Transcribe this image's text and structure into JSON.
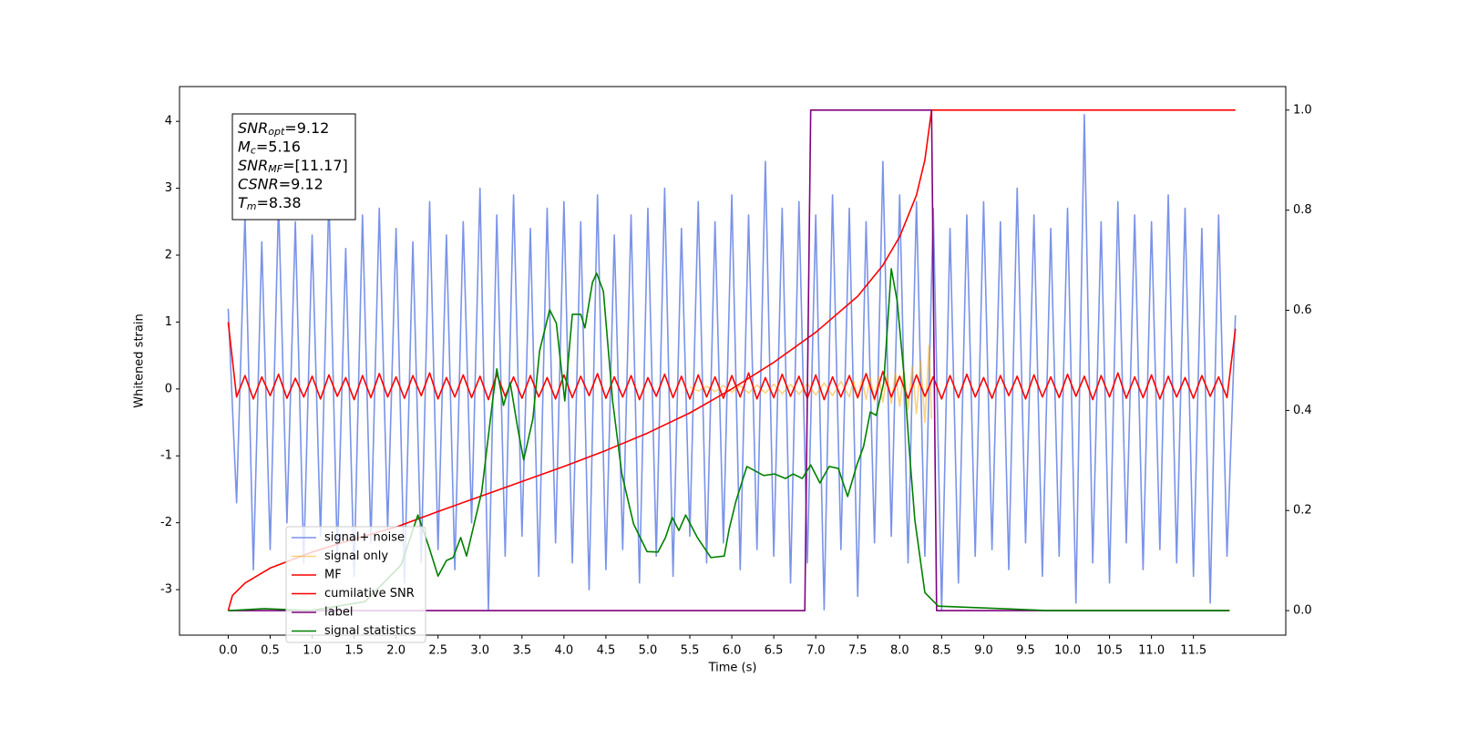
{
  "chart_data": {
    "type": "line",
    "xlabel": "Time (s)",
    "ylabel": "Whitened strain",
    "xlim": [
      -0.58,
      12.6
    ],
    "ylim": [
      -3.68,
      4.52
    ],
    "y2lim": [
      -0.049,
      1.047
    ],
    "xticks": [
      {
        "value": 0,
        "label": "0.0"
      },
      0.5,
      {
        "value": 1,
        "label": "1.0"
      },
      1.5,
      {
        "value": 2,
        "label": "2.0"
      },
      2.5,
      {
        "value": 3,
        "label": "3.0"
      },
      3.5,
      {
        "value": 4,
        "label": "4.0"
      },
      4.5,
      {
        "value": 5,
        "label": "5.0"
      },
      5.5,
      {
        "value": 6,
        "label": "6.0"
      },
      6.5,
      {
        "value": 7,
        "label": "7.0"
      },
      7.5,
      {
        "value": 8,
        "label": "8.0"
      },
      8.5,
      {
        "value": 9,
        "label": "9.0"
      },
      9.5,
      {
        "value": 10,
        "label": "10.0"
      },
      10.5,
      {
        "value": 11,
        "label": "11.0"
      },
      11.5
    ],
    "yticks": [
      -3,
      -2,
      -1,
      0,
      1,
      2,
      3,
      4
    ],
    "y2ticks": [
      {
        "value": 0,
        "label": "0.0"
      },
      0.2,
      0.4,
      0.6,
      0.8,
      {
        "value": 1,
        "label": "1.0"
      }
    ],
    "legend": "lower left",
    "annotations": [
      {
        "text": "SNR",
        "sub": "opt",
        "rest": "=9.12"
      },
      {
        "text": "M",
        "sub": "c",
        "rest": "=5.16"
      },
      {
        "text": "SNR",
        "sub": "MF",
        "rest": "=[11.17]"
      },
      {
        "text": "CSNR",
        "rest": "=9.12"
      },
      {
        "text": "T",
        "sub": "m",
        "rest": "=8.38"
      }
    ],
    "x": [
      0.0,
      0.1,
      0.2,
      0.3,
      0.4,
      0.5,
      0.6,
      0.7,
      0.8,
      0.9,
      1.0,
      1.1,
      1.2,
      1.3,
      1.4,
      1.5,
      1.6,
      1.7,
      1.8,
      1.9,
      2.0,
      2.1,
      2.2,
      2.3,
      2.4,
      2.5,
      2.6,
      2.7,
      2.8,
      2.9,
      3.0,
      3.1,
      3.2,
      3.3,
      3.4,
      3.5,
      3.6,
      3.7,
      3.8,
      3.9,
      4.0,
      4.1,
      4.2,
      4.3,
      4.4,
      4.5,
      4.6,
      4.7,
      4.8,
      4.9,
      5.0,
      5.1,
      5.2,
      5.3,
      5.4,
      5.5,
      5.6,
      5.7,
      5.8,
      5.9,
      6.0,
      6.1,
      6.2,
      6.3,
      6.4,
      6.5,
      6.6,
      6.7,
      6.8,
      6.9,
      7.0,
      7.1,
      7.2,
      7.3,
      7.4,
      7.5,
      7.6,
      7.7,
      7.8,
      7.9,
      8.0,
      8.1,
      8.2,
      8.3,
      8.4,
      8.5,
      8.6,
      8.7,
      8.8,
      8.9,
      9.0,
      9.1,
      9.2,
      9.3,
      9.4,
      9.5,
      9.6,
      9.7,
      9.8,
      9.9,
      10.0,
      10.1,
      10.2,
      10.3,
      10.4,
      10.5,
      10.6,
      10.7,
      10.8,
      10.9,
      11.0,
      11.1,
      11.2,
      11.3,
      11.4,
      11.5,
      11.6,
      11.7,
      11.8,
      11.9,
      12.0
    ],
    "series": [
      {
        "name": "signal+ noise",
        "color": "#7a93e8",
        "values": [
          1.2,
          -1.7,
          2.6,
          -2.7,
          2.2,
          -2.4,
          2.8,
          -2.0,
          2.5,
          -2.6,
          2.3,
          -2.2,
          2.9,
          -2.5,
          2.1,
          -2.8,
          2.6,
          -2.3,
          2.7,
          -2.1,
          2.4,
          -2.9,
          2.2,
          -2.6,
          2.8,
          -2.4,
          2.3,
          -2.7,
          2.5,
          -2.0,
          3.0,
          -3.3,
          2.6,
          -2.5,
          2.9,
          -2.2,
          2.4,
          -2.8,
          2.7,
          -2.3,
          2.8,
          -2.6,
          2.5,
          -3.0,
          2.9,
          -2.7,
          2.3,
          -2.4,
          2.6,
          -2.9,
          2.7,
          -2.5,
          3.0,
          -2.8,
          2.4,
          -2.2,
          2.8,
          -2.6,
          2.5,
          -2.3,
          2.9,
          -2.7,
          2.6,
          -2.4,
          3.4,
          -2.5,
          2.7,
          -2.9,
          2.8,
          -2.6,
          2.6,
          -3.3,
          2.9,
          -2.4,
          2.7,
          -3.1,
          2.5,
          -2.3,
          3.4,
          -2.2,
          2.9,
          -2.6,
          2.8,
          -2.5,
          2.7,
          -3.3,
          2.4,
          -2.9,
          2.6,
          -2.5,
          2.8,
          -2.4,
          2.5,
          -2.7,
          3.0,
          -2.3,
          2.6,
          -2.8,
          2.4,
          -2.5,
          2.7,
          -3.2,
          4.1,
          -2.6,
          2.5,
          -2.9,
          2.8,
          -2.3,
          2.6,
          -2.7,
          2.5,
          -2.4,
          2.9,
          -2.6,
          2.7,
          -2.8,
          2.4,
          -3.2,
          2.6,
          -2.5,
          1.1
        ]
      },
      {
        "name": "signal only",
        "color": "#ffa500",
        "alpha": 0.5,
        "x": [
          5.5,
          5.6,
          5.7,
          5.8,
          5.9,
          6.0,
          6.1,
          6.2,
          6.3,
          6.4,
          6.5,
          6.6,
          6.7,
          6.8,
          6.9,
          7.0,
          7.1,
          7.2,
          7.3,
          7.4,
          7.45,
          7.5,
          7.55,
          7.6,
          7.65,
          7.7,
          7.75,
          7.8,
          7.85,
          7.9,
          7.95,
          8.0,
          8.05,
          8.1,
          8.15,
          8.2,
          8.25,
          8.3,
          8.35,
          8.38
        ],
        "values": [
          0.03,
          -0.03,
          0.04,
          -0.04,
          0.05,
          -0.05,
          0.05,
          -0.06,
          0.06,
          -0.06,
          0.07,
          -0.07,
          0.07,
          -0.08,
          0.08,
          -0.09,
          0.09,
          -0.1,
          0.11,
          -0.12,
          0.13,
          -0.14,
          0.15,
          -0.16,
          0.17,
          -0.18,
          0.19,
          -0.2,
          0.21,
          -0.22,
          0.24,
          -0.26,
          0.28,
          -0.3,
          0.33,
          -0.37,
          0.42,
          -0.5,
          0.65,
          -0.45
        ]
      },
      {
        "name": "MF",
        "color": "#ff0000",
        "values": [
          1.0,
          -0.12,
          0.2,
          -0.15,
          0.18,
          -0.1,
          0.22,
          -0.14,
          0.16,
          -0.12,
          0.19,
          -0.15,
          0.21,
          -0.11,
          0.17,
          -0.16,
          0.2,
          -0.13,
          0.23,
          -0.12,
          0.18,
          -0.14,
          0.2,
          -0.1,
          0.24,
          -0.15,
          0.17,
          -0.12,
          0.21,
          -0.13,
          0.19,
          -0.16,
          0.22,
          -0.11,
          0.18,
          -0.14,
          0.2,
          -0.12,
          0.17,
          -0.15,
          0.21,
          -0.13,
          0.19,
          -0.1,
          0.23,
          -0.14,
          0.18,
          -0.12,
          0.2,
          -0.16,
          0.17,
          -0.11,
          0.22,
          -0.13,
          0.19,
          -0.15,
          0.21,
          -0.12,
          0.18,
          -0.14,
          0.2,
          -0.12,
          0.24,
          -0.15,
          0.17,
          -0.13,
          0.22,
          -0.11,
          0.19,
          -0.14,
          0.21,
          -0.16,
          0.18,
          -0.12,
          0.2,
          -0.13,
          0.23,
          -0.15,
          0.26,
          -0.12,
          0.19,
          -0.14,
          0.21,
          -0.11,
          0.18,
          -0.15,
          0.2,
          -0.13,
          0.22,
          -0.12,
          0.17,
          -0.14,
          0.2,
          -0.1,
          0.19,
          -0.15,
          0.21,
          -0.12,
          0.18,
          -0.13,
          0.22,
          -0.11,
          0.19,
          -0.16,
          0.2,
          -0.12,
          0.24,
          -0.14,
          0.18,
          -0.13,
          0.21,
          -0.15,
          0.19,
          -0.12,
          0.17,
          -0.14,
          0.2,
          -0.11,
          0.18,
          -0.13,
          0.9
        ]
      },
      {
        "name": "cumilative SNR",
        "color": "#ff0000",
        "axis": "y2",
        "x": [
          0,
          0.05,
          0.2,
          0.5,
          1,
          1.5,
          2,
          2.5,
          3,
          3.5,
          4,
          4.5,
          5,
          5.5,
          6,
          6.5,
          7,
          7.5,
          7.8,
          8,
          8.2,
          8.3,
          8.38,
          12.0
        ],
        "values": [
          0,
          0.03,
          0.055,
          0.085,
          0.117,
          0.143,
          0.167,
          0.198,
          0.228,
          0.258,
          0.288,
          0.32,
          0.355,
          0.395,
          0.443,
          0.496,
          0.556,
          0.628,
          0.69,
          0.747,
          0.83,
          0.9,
          1.0,
          1.0
        ]
      },
      {
        "name": "label",
        "color": "#800080",
        "axis": "y2",
        "x": [
          0,
          6.87,
          6.94,
          8.38,
          8.44,
          11.93
        ],
        "values": [
          0,
          0,
          1,
          1,
          0,
          0
        ]
      },
      {
        "name": "signal statistics",
        "color": "#008000",
        "axis": "y2",
        "x": [
          0,
          0.43,
          0.98,
          1.63,
          2.06,
          2.26,
          2.39,
          2.5,
          2.6,
          2.68,
          2.77,
          2.84,
          3.02,
          3.15,
          3.2,
          3.28,
          3.36,
          3.45,
          3.52,
          3.63,
          3.71,
          3.83,
          3.91,
          4.01,
          4.1,
          4.2,
          4.25,
          4.34,
          4.39,
          4.47,
          4.58,
          4.69,
          4.83,
          4.99,
          5.12,
          5.21,
          5.29,
          5.37,
          5.45,
          5.59,
          5.75,
          5.91,
          5.97,
          6.05,
          6.18,
          6.38,
          6.51,
          6.64,
          6.73,
          6.84,
          6.94,
          7.05,
          7.16,
          7.27,
          7.38,
          7.49,
          7.57,
          7.65,
          7.72,
          7.81,
          7.9,
          7.97,
          8.05,
          8.12,
          8.18,
          8.3,
          8.46,
          9.22,
          9.76,
          11.93
        ],
        "values": [
          0,
          0.004,
          0,
          0.018,
          0.091,
          0.191,
          0.128,
          0.069,
          0.1,
          0.106,
          0.146,
          0.109,
          0.237,
          0.419,
          0.483,
          0.41,
          0.455,
          0.364,
          0.301,
          0.383,
          0.519,
          0.601,
          0.574,
          0.419,
          0.592,
          0.592,
          0.565,
          0.656,
          0.674,
          0.638,
          0.419,
          0.273,
          0.173,
          0.118,
          0.117,
          0.146,
          0.186,
          0.16,
          0.191,
          0.146,
          0.106,
          0.109,
          0.164,
          0.219,
          0.288,
          0.27,
          0.273,
          0.264,
          0.273,
          0.264,
          0.291,
          0.255,
          0.288,
          0.284,
          0.228,
          0.291,
          0.328,
          0.397,
          0.39,
          0.455,
          0.683,
          0.619,
          0.474,
          0.31,
          0.182,
          0.036,
          0.009,
          0.004,
          0,
          0
        ]
      }
    ]
  }
}
